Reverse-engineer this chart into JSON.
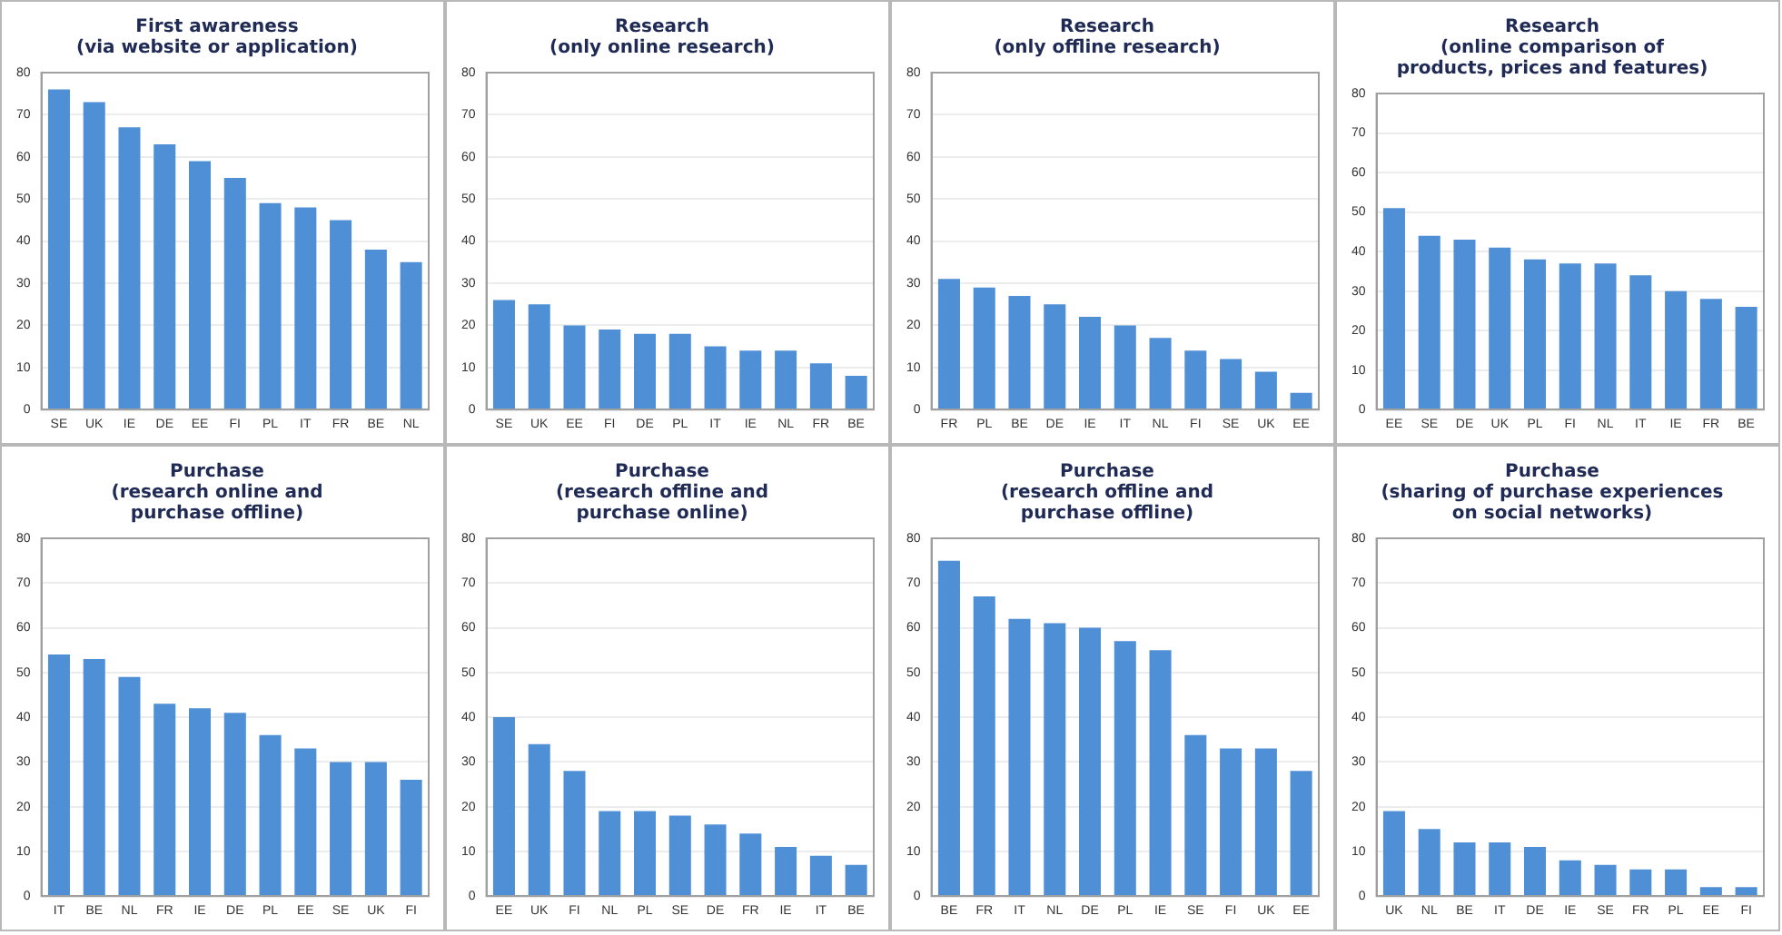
{
  "chart_data": [
    {
      "type": "bar",
      "title": "First awareness\n(via website or application)",
      "categories": [
        "SE",
        "UK",
        "IE",
        "DE",
        "EE",
        "FI",
        "PL",
        "IT",
        "FR",
        "BE",
        "NL"
      ],
      "values": [
        76,
        73,
        67,
        63,
        59,
        55,
        49,
        48,
        45,
        38,
        35
      ],
      "color": "#4f8fd6",
      "ylim": [
        0,
        80
      ],
      "yticks": [
        0,
        10,
        20,
        30,
        40,
        50,
        60,
        70,
        80
      ],
      "grid": "y"
    },
    {
      "type": "bar",
      "title": "Research\n(only online research)",
      "categories": [
        "SE",
        "UK",
        "EE",
        "FI",
        "DE",
        "PL",
        "IT",
        "IE",
        "NL",
        "FR",
        "BE"
      ],
      "values": [
        26,
        25,
        20,
        19,
        18,
        18,
        15,
        14,
        14,
        11,
        8
      ],
      "color": "#4f8fd6",
      "ylim": [
        0,
        80
      ],
      "yticks": [
        0,
        10,
        20,
        30,
        40,
        50,
        60,
        70,
        80
      ],
      "grid": "y"
    },
    {
      "type": "bar",
      "title": "Research\n(only offline research)",
      "categories": [
        "FR",
        "PL",
        "BE",
        "DE",
        "IE",
        "IT",
        "NL",
        "FI",
        "SE",
        "UK",
        "EE"
      ],
      "values": [
        31,
        29,
        27,
        25,
        22,
        20,
        17,
        14,
        12,
        9,
        4
      ],
      "color": "#4f8fd6",
      "ylim": [
        0,
        80
      ],
      "yticks": [
        0,
        10,
        20,
        30,
        40,
        50,
        60,
        70,
        80
      ],
      "grid": "y"
    },
    {
      "type": "bar",
      "title": "Research\n(online comparison of\nproducts, prices and features)",
      "categories": [
        "EE",
        "SE",
        "DE",
        "UK",
        "PL",
        "FI",
        "NL",
        "IT",
        "IE",
        "FR",
        "BE"
      ],
      "values": [
        51,
        44,
        43,
        41,
        38,
        37,
        37,
        34,
        30,
        28,
        26
      ],
      "color": "#4f8fd6",
      "ylim": [
        0,
        80
      ],
      "yticks": [
        0,
        10,
        20,
        30,
        40,
        50,
        60,
        70,
        80
      ],
      "grid": "y"
    },
    {
      "type": "bar",
      "title": "Purchase\n(research online and\npurchase offline)",
      "categories": [
        "IT",
        "BE",
        "NL",
        "FR",
        "IE",
        "DE",
        "PL",
        "EE",
        "SE",
        "UK",
        "FI"
      ],
      "values": [
        54,
        53,
        49,
        43,
        42,
        41,
        36,
        33,
        30,
        30,
        26
      ],
      "color": "#4f8fd6",
      "ylim": [
        0,
        80
      ],
      "yticks": [
        0,
        10,
        20,
        30,
        40,
        50,
        60,
        70,
        80
      ],
      "grid": "y"
    },
    {
      "type": "bar",
      "title": "Purchase\n(research offline and\npurchase online)",
      "categories": [
        "EE",
        "UK",
        "FI",
        "NL",
        "PL",
        "SE",
        "DE",
        "FR",
        "IE",
        "IT",
        "BE"
      ],
      "values": [
        40,
        34,
        28,
        19,
        19,
        18,
        16,
        14,
        11,
        9,
        7
      ],
      "color": "#4f8fd6",
      "ylim": [
        0,
        80
      ],
      "yticks": [
        0,
        10,
        20,
        30,
        40,
        50,
        60,
        70,
        80
      ],
      "grid": "y"
    },
    {
      "type": "bar",
      "title": "Purchase\n(research offline and\npurchase offline)",
      "categories": [
        "BE",
        "FR",
        "IT",
        "NL",
        "DE",
        "PL",
        "IE",
        "SE",
        "FI",
        "UK",
        "EE"
      ],
      "values": [
        75,
        67,
        62,
        61,
        60,
        57,
        55,
        36,
        33,
        33,
        28
      ],
      "color": "#4f8fd6",
      "ylim": [
        0,
        80
      ],
      "yticks": [
        0,
        10,
        20,
        30,
        40,
        50,
        60,
        70,
        80
      ],
      "grid": "y"
    },
    {
      "type": "bar",
      "title": "Purchase\n(sharing of purchase experiences\non social networks)",
      "categories": [
        "UK",
        "NL",
        "BE",
        "IT",
        "DE",
        "IE",
        "SE",
        "FR",
        "PL",
        "EE",
        "FI"
      ],
      "values": [
        19,
        15,
        12,
        12,
        11,
        8,
        7,
        6,
        6,
        2,
        2
      ],
      "color": "#4f8fd6",
      "ylim": [
        0,
        80
      ],
      "yticks": [
        0,
        10,
        20,
        30,
        40,
        50,
        60,
        70,
        80
      ],
      "grid": "y"
    }
  ]
}
